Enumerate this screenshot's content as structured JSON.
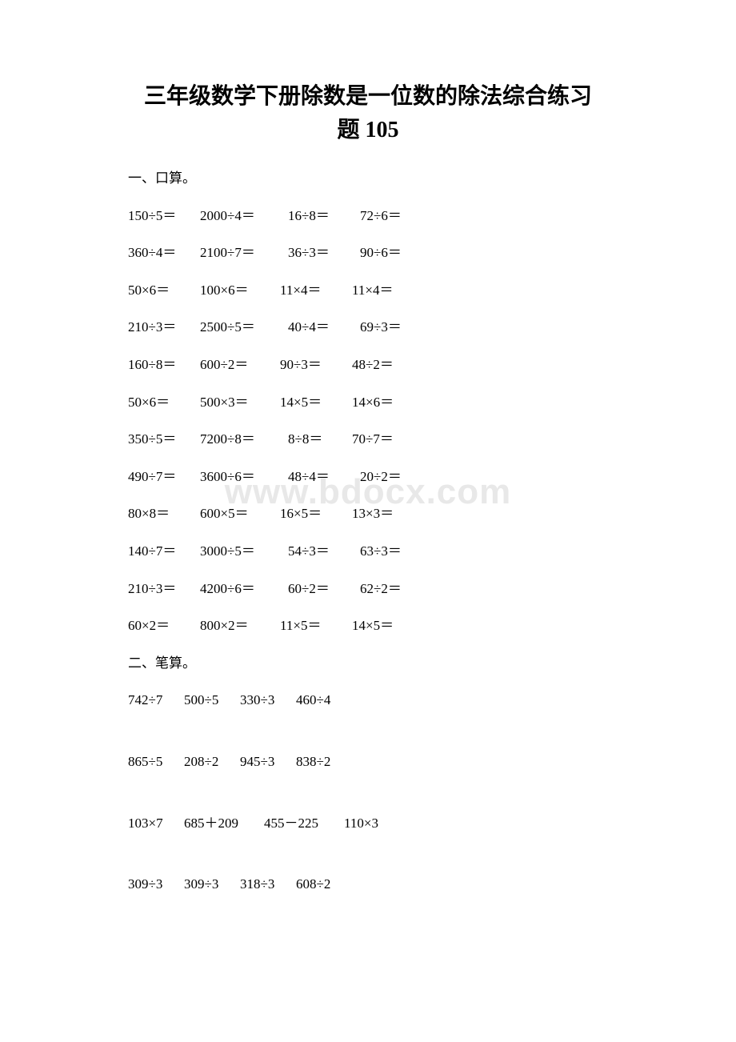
{
  "title_line1": "三年级数学下册除数是一位数的除法综合练习",
  "title_line2": "题 105",
  "section1_header": "一、口算。",
  "section2_header": "二、笔算。",
  "watermark_line1": "X.COM",
  "watermark_line2": "",
  "mental_rows": [
    {
      "c1": "150÷5＝",
      "c2": "2000÷4＝",
      "c3": "16÷8＝",
      "c4": "72÷6＝",
      "w1": 90,
      "w2": 110,
      "w3": 90,
      "w4": 90
    },
    {
      "c1": "360÷4＝",
      "c2": "2100÷7＝",
      "c3": "36÷3＝",
      "c4": "90÷6＝",
      "w1": 90,
      "w2": 110,
      "w3": 90,
      "w4": 90
    },
    {
      "c1": "50×6＝",
      "c2": "100×6＝",
      "c3": "11×4＝",
      "c4": "11×4＝",
      "w1": 90,
      "w2": 100,
      "w3": 90,
      "w4": 90
    },
    {
      "c1": "210÷3＝",
      "c2": "2500÷5＝",
      "c3": "40÷4＝",
      "c4": "69÷3＝",
      "w1": 90,
      "w2": 110,
      "w3": 90,
      "w4": 90
    },
    {
      "c1": "160÷8＝",
      "c2": "600÷2＝",
      "c3": "90÷3＝",
      "c4": "48÷2＝",
      "w1": 90,
      "w2": 100,
      "w3": 90,
      "w4": 90
    },
    {
      "c1": "50×6＝",
      "c2": "500×3＝",
      "c3": "14×5＝",
      "c4": "14×6＝",
      "w1": 90,
      "w2": 100,
      "w3": 90,
      "w4": 90
    },
    {
      "c1": "350÷5＝",
      "c2": "7200÷8＝",
      "c3": "8÷8＝",
      "c4": "70÷7＝",
      "w1": 90,
      "w2": 110,
      "w3": 80,
      "w4": 90
    },
    {
      "c1": "490÷7＝",
      "c2": "3600÷6＝",
      "c3": "48÷4＝",
      "c4": "20÷2＝",
      "w1": 90,
      "w2": 110,
      "w3": 90,
      "w4": 90
    },
    {
      "c1": "80×8＝",
      "c2": "600×5＝",
      "c3": "16×5＝",
      "c4": "13×3＝",
      "w1": 90,
      "w2": 100,
      "w3": 90,
      "w4": 90
    },
    {
      "c1": "140÷7＝",
      "c2": "3000÷5＝",
      "c3": "54÷3＝",
      "c4": "63÷3＝",
      "w1": 90,
      "w2": 110,
      "w3": 90,
      "w4": 90
    },
    {
      "c1": "210÷3＝",
      "c2": "4200÷6＝",
      "c3": "60÷2＝",
      "c4": "62÷2＝",
      "w1": 90,
      "w2": 110,
      "w3": 90,
      "w4": 90
    },
    {
      "c1": "60×2＝",
      "c2": "800×2＝",
      "c3": "11×5＝",
      "c4": "14×5＝",
      "w1": 90,
      "w2": 100,
      "w3": 90,
      "w4": 90
    }
  ],
  "written_rows": [
    {
      "c1": "742÷7",
      "c2": "500÷5",
      "c3": "330÷3",
      "c4": "460÷4",
      "w1": 70,
      "w2": 70,
      "w3": 70,
      "w4": 70
    },
    {
      "c1": "865÷5",
      "c2": "208÷2",
      "c3": "945÷3",
      "c4": "838÷2",
      "w1": 70,
      "w2": 70,
      "w3": 70,
      "w4": 70
    },
    {
      "c1": "103×7",
      "c2": "685＋209",
      "c3": "455－225",
      "c4": "110×3",
      "w1": 70,
      "w2": 100,
      "w3": 100,
      "w4": 70
    },
    {
      "c1": "309÷3",
      "c2": "309÷3",
      "c3": "318÷3",
      "c4": "608÷2",
      "w1": 70,
      "w2": 70,
      "w3": 70,
      "w4": 70
    }
  ],
  "colors": {
    "background": "#ffffff",
    "text": "#000000",
    "watermark": "#e8e8e8"
  },
  "typography": {
    "title_fontsize": 28,
    "body_fontsize": 17,
    "watermark_fontsize": 44
  }
}
